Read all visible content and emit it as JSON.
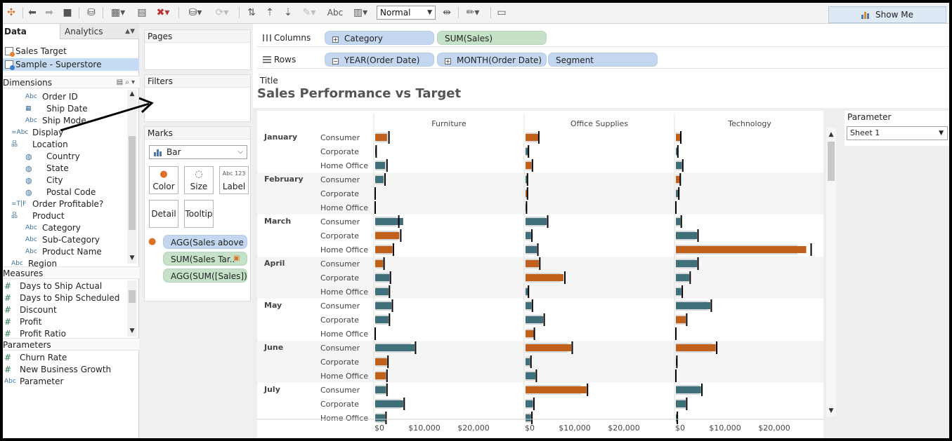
{
  "toolbar": {
    "fit_value": "Normal",
    "abc_label": "Abc",
    "show_me_label": "Show Me"
  },
  "data_pane": {
    "tabs": {
      "data": "Data",
      "analytics": "Analytics"
    },
    "data_sources": [
      {
        "label": "Sales Target",
        "selected": false
      },
      {
        "label": "Sample - Superstore",
        "selected": true
      }
    ],
    "dimensions_header": "Dimensions",
    "dimensions": [
      {
        "icon": "Abc",
        "label": "Order ID",
        "indent": 1
      },
      {
        "icon": "calendar",
        "label": "Ship Date",
        "indent": 1
      },
      {
        "icon": "Abc",
        "label": "Ship Mode",
        "indent": 1
      },
      {
        "icon": "=Abc",
        "label": "Display",
        "indent": 0
      },
      {
        "icon": "hierarchy",
        "label": "Location",
        "indent": 0
      },
      {
        "icon": "globe",
        "label": "Country",
        "indent": 1
      },
      {
        "icon": "globe",
        "label": "State",
        "indent": 1
      },
      {
        "icon": "globe",
        "label": "City",
        "indent": 1
      },
      {
        "icon": "globe",
        "label": "Postal Code",
        "indent": 1
      },
      {
        "icon": "=T|F",
        "label": "Order Profitable?",
        "indent": 0
      },
      {
        "icon": "hierarchy",
        "label": "Product",
        "indent": 0
      },
      {
        "icon": "Abc",
        "label": "Category",
        "indent": 1
      },
      {
        "icon": "Abc",
        "label": "Sub-Category",
        "indent": 1
      },
      {
        "icon": "Abc",
        "label": "Product Name",
        "indent": 1
      },
      {
        "icon": "Abc",
        "label": "Region",
        "indent": 0
      }
    ],
    "measures_header": "Measures",
    "measures": [
      "Days to Ship Actual",
      "Days to Ship Scheduled",
      "Discount",
      "Profit",
      "Profit Ratio"
    ],
    "parameters_header": "Parameters",
    "parameters": [
      {
        "icon": "#",
        "label": "Churn Rate"
      },
      {
        "icon": "#",
        "label": "New Business Growth"
      },
      {
        "icon": "Abc",
        "label": "Parameter"
      }
    ]
  },
  "cards": {
    "pages": "Pages",
    "filters": "Filters",
    "marks": "Marks",
    "mark_type": "Bar",
    "buttons": {
      "color": "Color",
      "size": "Size",
      "label": "Label",
      "label_icon": "Abc 123",
      "detail": "Detail",
      "tooltip": "Tooltip"
    },
    "mark_pills": [
      "AGG(Sales above ..",
      "SUM(Sales Tar..",
      "AGG(SUM([Sales]).."
    ]
  },
  "shelves": {
    "columns_label": "Columns",
    "rows_label": "Rows",
    "columns": [
      "Category",
      "SUM(Sales)"
    ],
    "rows": [
      "YEAR(Order Date)",
      "MONTH(Order Date)",
      "Segment"
    ]
  },
  "view": {
    "title_caption": "Title",
    "title": "Sales Performance vs Target"
  },
  "parameter_card": {
    "title": "Parameter",
    "value": "Sheet 1"
  },
  "colors": {
    "above_target": "#3e6f7b",
    "below_target": "#c0601b",
    "target_band": "#d9d9d9",
    "dimension_pill": "#c3d8f0",
    "measure_pill": "#c5e2c9"
  },
  "chart_data": {
    "type": "bar",
    "title": "Sales Performance vs Target",
    "facets": [
      "Furniture",
      "Office Supplies",
      "Technology"
    ],
    "x_ticks": [
      "$0",
      "$10,000",
      "$20,000"
    ],
    "xlim": [
      0,
      28000
    ],
    "months": [
      "January",
      "February",
      "March",
      "April",
      "May",
      "June",
      "July"
    ],
    "segments": [
      "Consumer",
      "Corporate",
      "Home Office"
    ],
    "rows": [
      {
        "month": "January",
        "segment": "Consumer",
        "sales": [
          2400,
          2600,
          900
        ],
        "target": [
          2800,
          2700,
          1000
        ],
        "above": [
          false,
          false,
          false
        ]
      },
      {
        "month": "January",
        "segment": "Corporate",
        "sales": [
          100,
          500,
          300
        ],
        "target": [
          200,
          600,
          400
        ],
        "above": [
          true,
          true,
          true
        ]
      },
      {
        "month": "January",
        "segment": "Home Office",
        "sales": [
          2000,
          1200,
          1200
        ],
        "target": [
          2400,
          1400,
          1400
        ],
        "above": [
          true,
          false,
          true
        ]
      },
      {
        "month": "February",
        "segment": "Consumer",
        "sales": [
          1700,
          300,
          800
        ],
        "target": [
          2000,
          400,
          900
        ],
        "above": [
          true,
          true,
          false
        ]
      },
      {
        "month": "February",
        "segment": "Corporate",
        "sales": [
          0,
          300,
          500
        ],
        "target": [
          0,
          400,
          600
        ],
        "above": [
          true,
          false,
          true
        ]
      },
      {
        "month": "February",
        "segment": "Home Office",
        "sales": [
          0,
          100,
          0
        ],
        "target": [
          0,
          200,
          0
        ],
        "above": [
          true,
          true,
          true
        ]
      },
      {
        "month": "March",
        "segment": "Consumer",
        "sales": [
          5700,
          4300,
          900
        ],
        "target": [
          4800,
          4500,
          1100
        ],
        "above": [
          true,
          true,
          true
        ]
      },
      {
        "month": "March",
        "segment": "Corporate",
        "sales": [
          4900,
          1100,
          4300
        ],
        "target": [
          5200,
          1300,
          4500
        ],
        "above": [
          false,
          true,
          true
        ]
      },
      {
        "month": "March",
        "segment": "Home Office",
        "sales": [
          3500,
          2300,
          26500
        ],
        "target": [
          3700,
          2500,
          27500
        ],
        "above": [
          false,
          true,
          false
        ]
      },
      {
        "month": "April",
        "segment": "Consumer",
        "sales": [
          1600,
          2700,
          4300
        ],
        "target": [
          1800,
          2900,
          4500
        ],
        "above": [
          false,
          false,
          true
        ]
      },
      {
        "month": "April",
        "segment": "Corporate",
        "sales": [
          2900,
          7700,
          2700
        ],
        "target": [
          3100,
          8000,
          2900
        ],
        "above": [
          true,
          false,
          true
        ]
      },
      {
        "month": "April",
        "segment": "Home Office",
        "sales": [
          2700,
          500,
          1100
        ],
        "target": [
          2900,
          600,
          1300
        ],
        "above": [
          true,
          true,
          true
        ]
      },
      {
        "month": "May",
        "segment": "Consumer",
        "sales": [
          3300,
          1200,
          7000
        ],
        "target": [
          3500,
          1400,
          7200
        ],
        "above": [
          true,
          true,
          true
        ]
      },
      {
        "month": "May",
        "segment": "Corporate",
        "sales": [
          2700,
          3600,
          2000
        ],
        "target": [
          2900,
          3800,
          2200
        ],
        "above": [
          true,
          true,
          false
        ]
      },
      {
        "month": "May",
        "segment": "Home Office",
        "sales": [
          0,
          1700,
          0
        ],
        "target": [
          0,
          1800,
          0
        ],
        "above": [
          true,
          false,
          true
        ]
      },
      {
        "month": "June",
        "segment": "Consumer",
        "sales": [
          8000,
          9300,
          8100
        ],
        "target": [
          8200,
          9500,
          8300
        ],
        "above": [
          true,
          false,
          false
        ]
      },
      {
        "month": "June",
        "segment": "Corporate",
        "sales": [
          2400,
          900,
          200
        ],
        "target": [
          2600,
          1100,
          200
        ],
        "above": [
          false,
          true,
          true
        ]
      },
      {
        "month": "June",
        "segment": "Home Office",
        "sales": [
          2200,
          2000,
          0
        ],
        "target": [
          2400,
          2200,
          0
        ],
        "above": [
          false,
          true,
          true
        ]
      },
      {
        "month": "July",
        "segment": "Consumer",
        "sales": [
          2200,
          12400,
          5100
        ],
        "target": [
          2400,
          12600,
          5300
        ],
        "above": [
          true,
          false,
          true
        ]
      },
      {
        "month": "July",
        "segment": "Corporate",
        "sales": [
          5700,
          1500,
          2000
        ],
        "target": [
          5900,
          1700,
          2200
        ],
        "above": [
          true,
          true,
          true
        ]
      },
      {
        "month": "July",
        "segment": "Home Office",
        "sales": [
          2000,
          1100,
          200
        ],
        "target": [
          2200,
          1300,
          300
        ],
        "above": [
          true,
          true,
          true
        ]
      }
    ]
  }
}
